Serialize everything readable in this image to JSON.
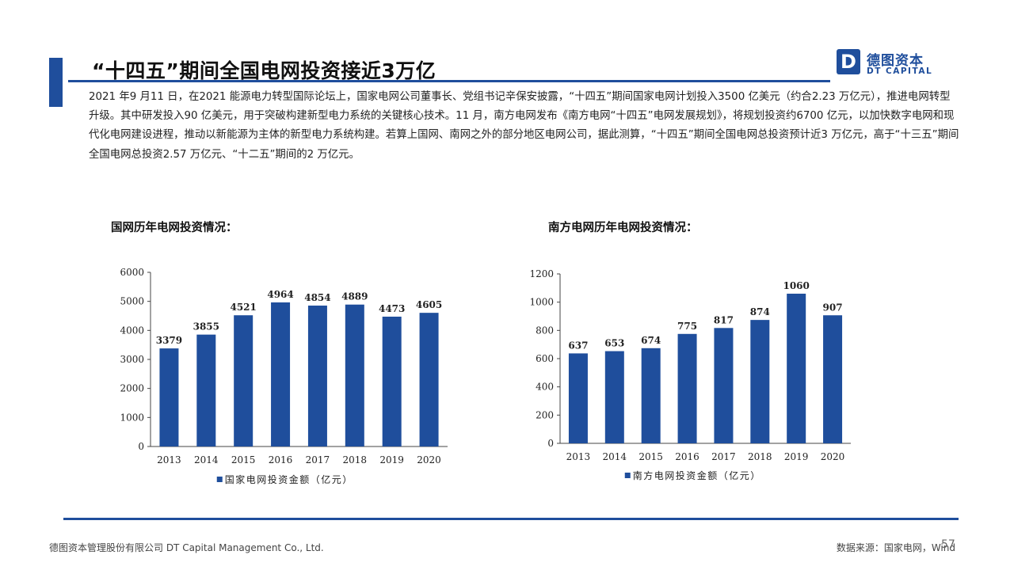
{
  "header": {
    "title": "“十四五”期间全国电网投资接近3万亿",
    "logo_cn": "德图资本",
    "logo_en": "DT CAPITAL",
    "logo_mark": "D"
  },
  "intro": "2021 年9 月11 日，在2021 能源电力转型国际论坛上，国家电网公司董事长、党组书记辛保安披露，“十四五”期间国家电网计划投入3500 亿美元（约合2.23 万亿元），推进电网转型升级。其中研发投入90 亿美元，用于突破构建新型电力系统的关键核心技术。11 月，南方电网发布《南方电网“十四五”电网发展规划》，将规划投资约6700 亿元，以加快数字电网和现代化电网建设进程，推动以新能源为主体的新型电力系统构建。若算上国网、南网之外的部分地区电网公司，据此测算，“十四五”期间全国电网总投资预计近3 万亿元，高于“十三五”期间全国电网总投资2.57 万亿元、“十二五”期间的2 万亿元。",
  "chart_titles": {
    "left": "国网历年电网投资情况：",
    "right": "南方电网历年电网投资情况："
  },
  "colors": {
    "accent": "#1f4e9c",
    "bar": "#1f4e9c"
  },
  "chart_data": [
    {
      "type": "bar",
      "categories": [
        "2013",
        "2014",
        "2015",
        "2016",
        "2017",
        "2018",
        "2019",
        "2020"
      ],
      "series": [
        {
          "name": "国家电网投资金额（亿元）",
          "values": [
            3379,
            3855,
            4521,
            4964,
            4854,
            4889,
            4473,
            4605
          ]
        }
      ],
      "ylim": [
        0,
        6000
      ],
      "yticks": [
        0,
        1000,
        2000,
        3000,
        4000,
        5000,
        6000
      ],
      "legend": "bottom",
      "grid": false
    },
    {
      "type": "bar",
      "categories": [
        "2013",
        "2014",
        "2015",
        "2016",
        "2017",
        "2018",
        "2019",
        "2020"
      ],
      "series": [
        {
          "name": "南方电网投资金额（亿元）",
          "values": [
            637,
            653,
            674,
            775,
            817,
            874,
            1060,
            907
          ]
        }
      ],
      "ylim": [
        0,
        1200
      ],
      "yticks": [
        0,
        200,
        400,
        600,
        800,
        1000,
        1200
      ],
      "legend": "bottom",
      "grid": false
    }
  ],
  "footer": {
    "company": "德图资本管理股份有限公司 DT Capital Management Co., Ltd.",
    "source": "数据来源：国家电网，Wind",
    "page": "57"
  }
}
